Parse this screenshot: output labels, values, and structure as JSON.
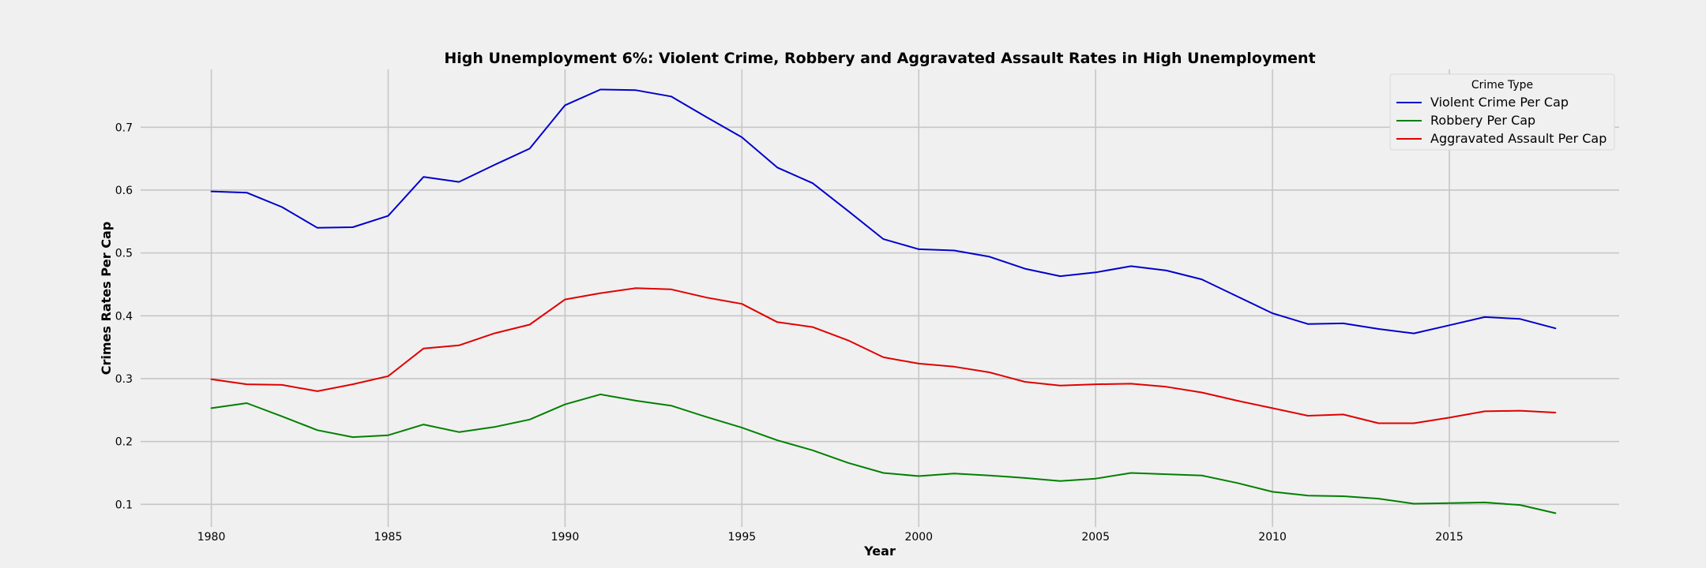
{
  "chart_data": {
    "type": "line",
    "title": "High Unemployment 6%: Violent Crime, Robbery and Aggravated Assault Rates in High Unemployment",
    "xlabel": "Year",
    "ylabel": "Crimes Rates Per Cap",
    "xlim": [
      1978,
      2019.8
    ],
    "ylim": [
      0.064,
      0.792
    ],
    "x_ticks": [
      1980,
      1985,
      1990,
      1995,
      2000,
      2005,
      2010,
      2015
    ],
    "y_ticks": [
      0.1,
      0.2,
      0.3,
      0.4,
      0.5,
      0.6,
      0.7
    ],
    "y_tick_labels": [
      "0.1",
      "0.2",
      "0.3",
      "0.4",
      "0.5",
      "0.6",
      "0.7"
    ],
    "grid": true,
    "legend": {
      "title": "Crime Type",
      "placement": "top-right"
    },
    "x": [
      1980,
      1981,
      1982,
      1983,
      1984,
      1985,
      1986,
      1987,
      1988,
      1989,
      1990,
      1991,
      1992,
      1993,
      1994,
      1995,
      1996,
      1997,
      1998,
      1999,
      2000,
      2001,
      2002,
      2003,
      2004,
      2005,
      2006,
      2007,
      2008,
      2009,
      2010,
      2011,
      2012,
      2013,
      2014,
      2015,
      2016,
      2017,
      2018
    ],
    "series": [
      {
        "name": "Violent Crime Per Cap",
        "color": "#0000cc",
        "values": [
          0.598,
          0.596,
          0.573,
          0.54,
          0.541,
          0.559,
          0.621,
          0.613,
          0.64,
          0.666,
          0.735,
          0.76,
          0.759,
          0.749,
          0.716,
          0.684,
          0.636,
          0.611,
          0.567,
          0.522,
          0.506,
          0.504,
          0.494,
          0.475,
          0.463,
          0.469,
          0.479,
          0.472,
          0.458,
          0.431,
          0.404,
          0.387,
          0.388,
          0.379,
          0.372,
          0.385,
          0.398,
          0.395,
          0.38
        ]
      },
      {
        "name": "Robbery Per Cap",
        "color": "#008000",
        "values": [
          0.253,
          0.261,
          0.24,
          0.218,
          0.207,
          0.21,
          0.227,
          0.215,
          0.223,
          0.235,
          0.259,
          0.275,
          0.265,
          0.257,
          0.239,
          0.222,
          0.202,
          0.186,
          0.166,
          0.15,
          0.145,
          0.149,
          0.146,
          0.142,
          0.137,
          0.141,
          0.15,
          0.148,
          0.146,
          0.134,
          0.12,
          0.114,
          0.113,
          0.109,
          0.101,
          0.102,
          0.103,
          0.099,
          0.086
        ]
      },
      {
        "name": "Aggravated Assault Per Cap",
        "color": "#e00000",
        "values": [
          0.299,
          0.291,
          0.29,
          0.28,
          0.291,
          0.304,
          0.348,
          0.353,
          0.372,
          0.386,
          0.426,
          0.436,
          0.444,
          0.442,
          0.429,
          0.419,
          0.39,
          0.382,
          0.361,
          0.334,
          0.324,
          0.319,
          0.31,
          0.295,
          0.289,
          0.291,
          0.292,
          0.287,
          0.278,
          0.265,
          0.253,
          0.241,
          0.243,
          0.229,
          0.229,
          0.238,
          0.248,
          0.249,
          0.246
        ]
      }
    ]
  }
}
